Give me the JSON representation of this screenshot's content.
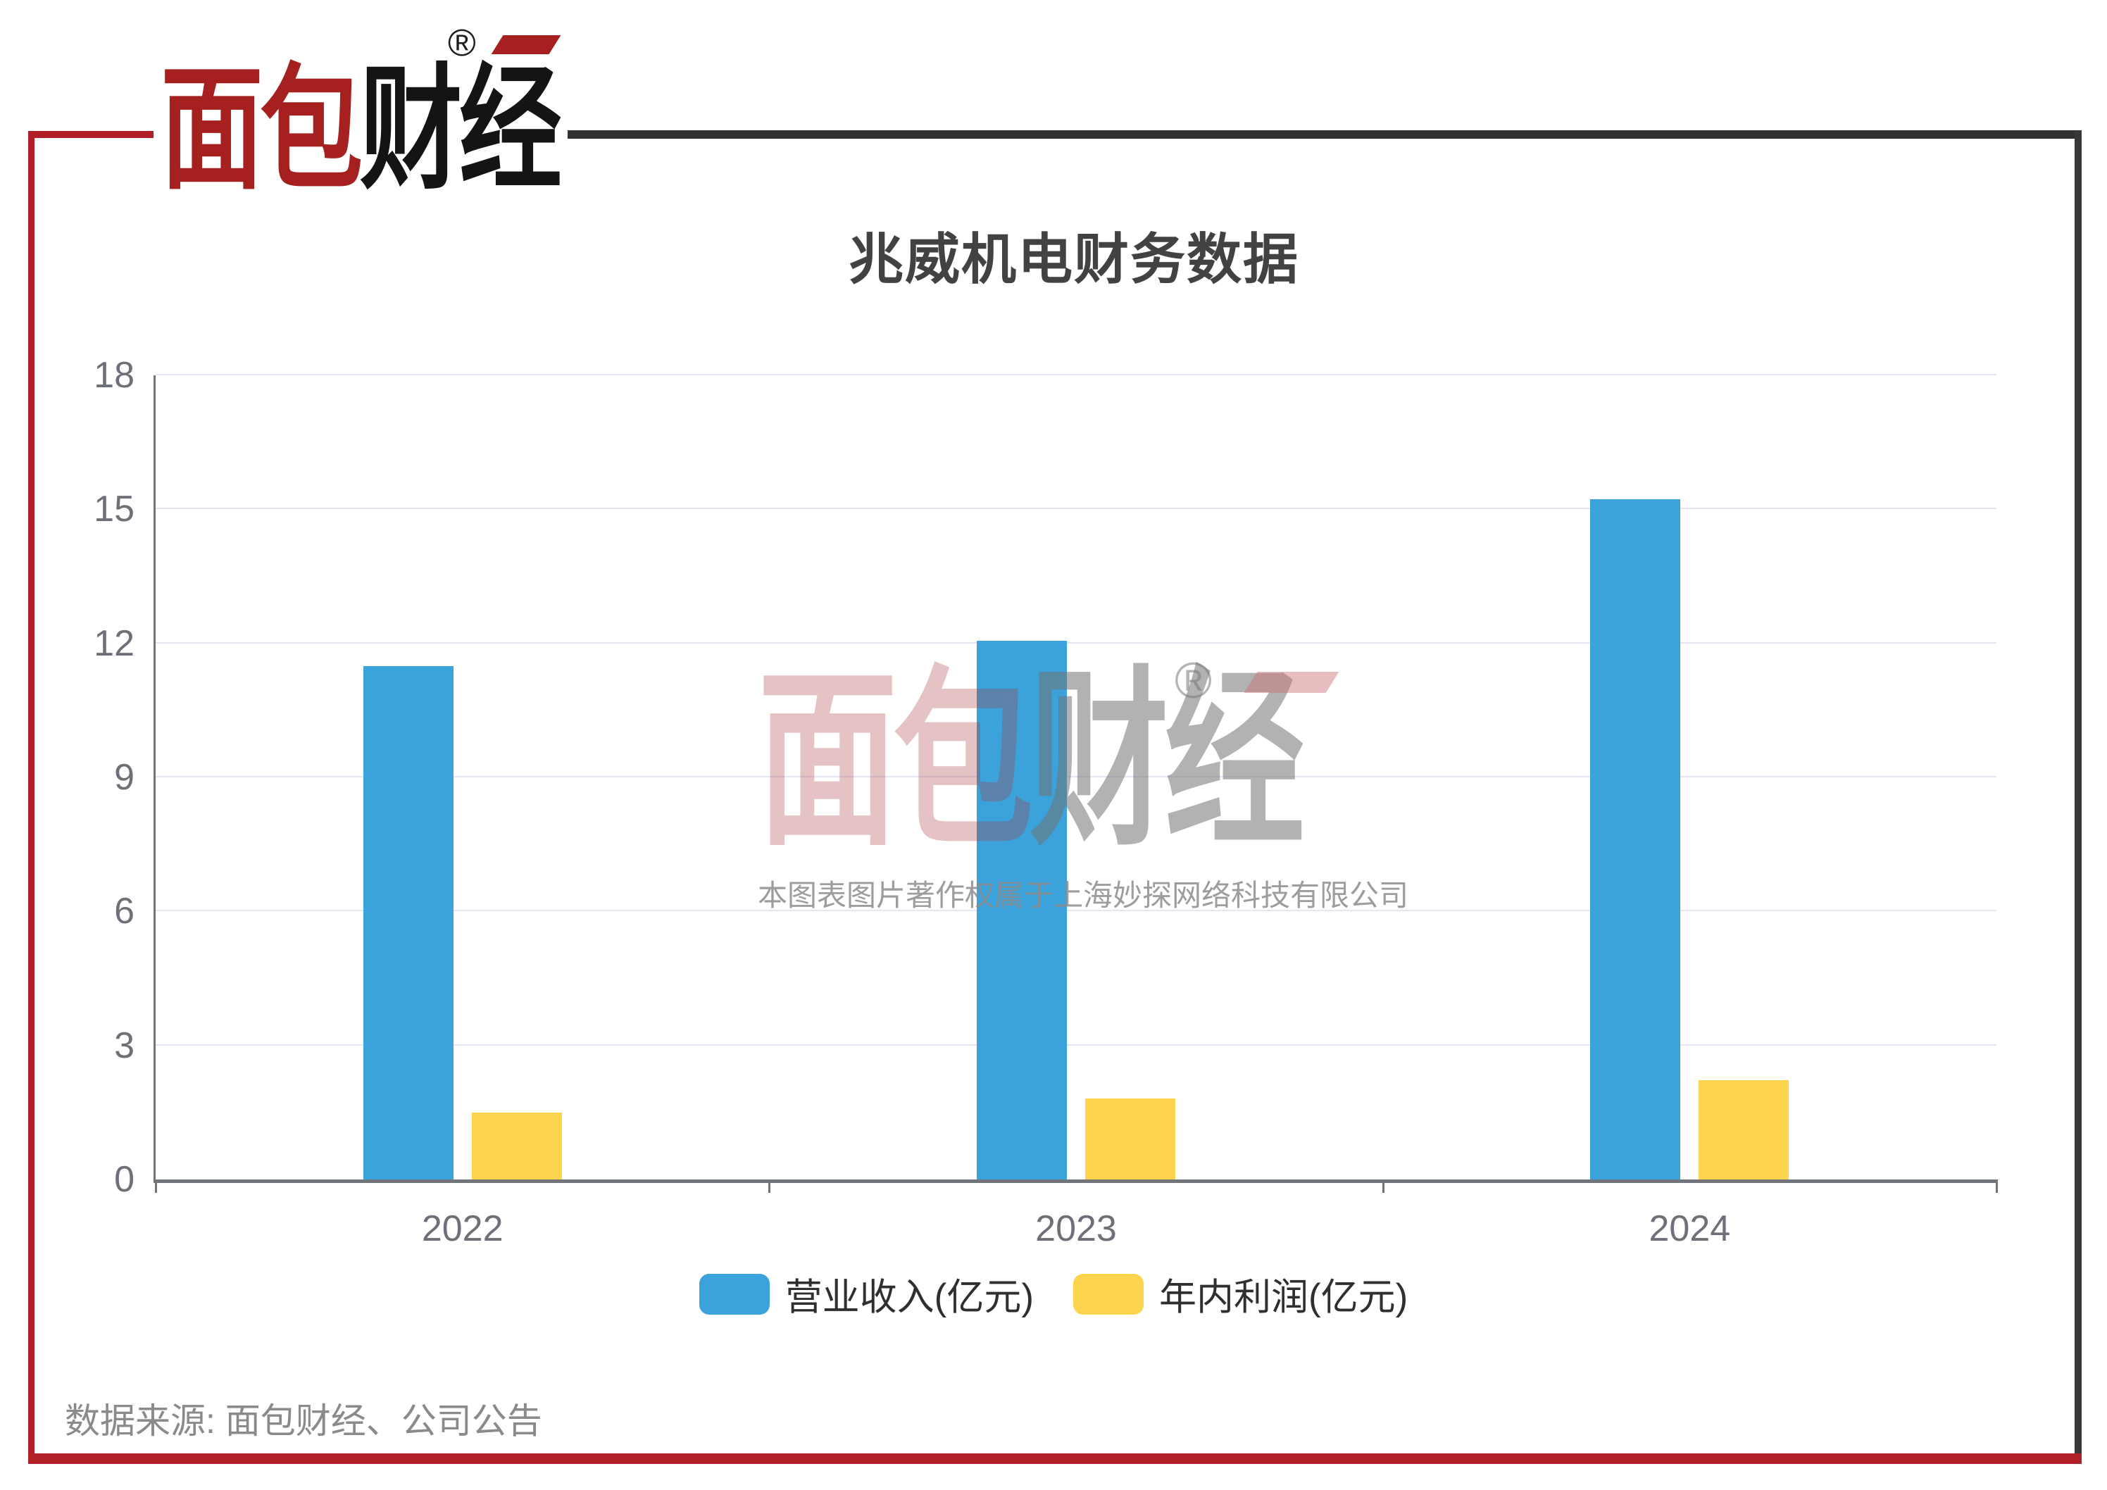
{
  "logo": {
    "text_red": "面包",
    "text_black": "财经",
    "registered_mark": "®"
  },
  "title": "兆威机电财务数据",
  "chart_data": {
    "type": "bar",
    "title": "兆威机电财务数据",
    "categories": [
      "2022",
      "2023",
      "2024"
    ],
    "series": [
      {
        "name": "营业收入(亿元)",
        "color": "#3BA2DC",
        "values": [
          11.49,
          12.06,
          15.22
        ]
      },
      {
        "name": "年内利润(亿元)",
        "color": "#FCD44D",
        "values": [
          1.49,
          1.81,
          2.22
        ]
      }
    ],
    "xlabel": "",
    "ylabel": "",
    "ylim": [
      0,
      18
    ],
    "yticks": [
      0,
      3,
      6,
      9,
      12,
      15,
      18
    ],
    "grid": true,
    "legend_position": "bottom"
  },
  "watermark": {
    "logo_red": "面包",
    "logo_gray": "财经",
    "registered_mark": "®",
    "copyright_text": "本图表图片著作权属于上海妙探网络科技有限公司"
  },
  "source_note": "数据来源: 面包财经、公司公告",
  "colors": {
    "frame_red": "#B01F28",
    "frame_dark": "#333333",
    "axis": "#71757A",
    "gridline": "#E2E7F1",
    "tick_label": "#6E7079",
    "title_text": "#424242",
    "legend_text": "#2F2F2F",
    "source_text": "#8A8A8A",
    "logo_red": "#A6201F",
    "logo_black": "#141414",
    "bar_blue": "#3BA2DC",
    "bar_yellow": "#FCD44D"
  }
}
